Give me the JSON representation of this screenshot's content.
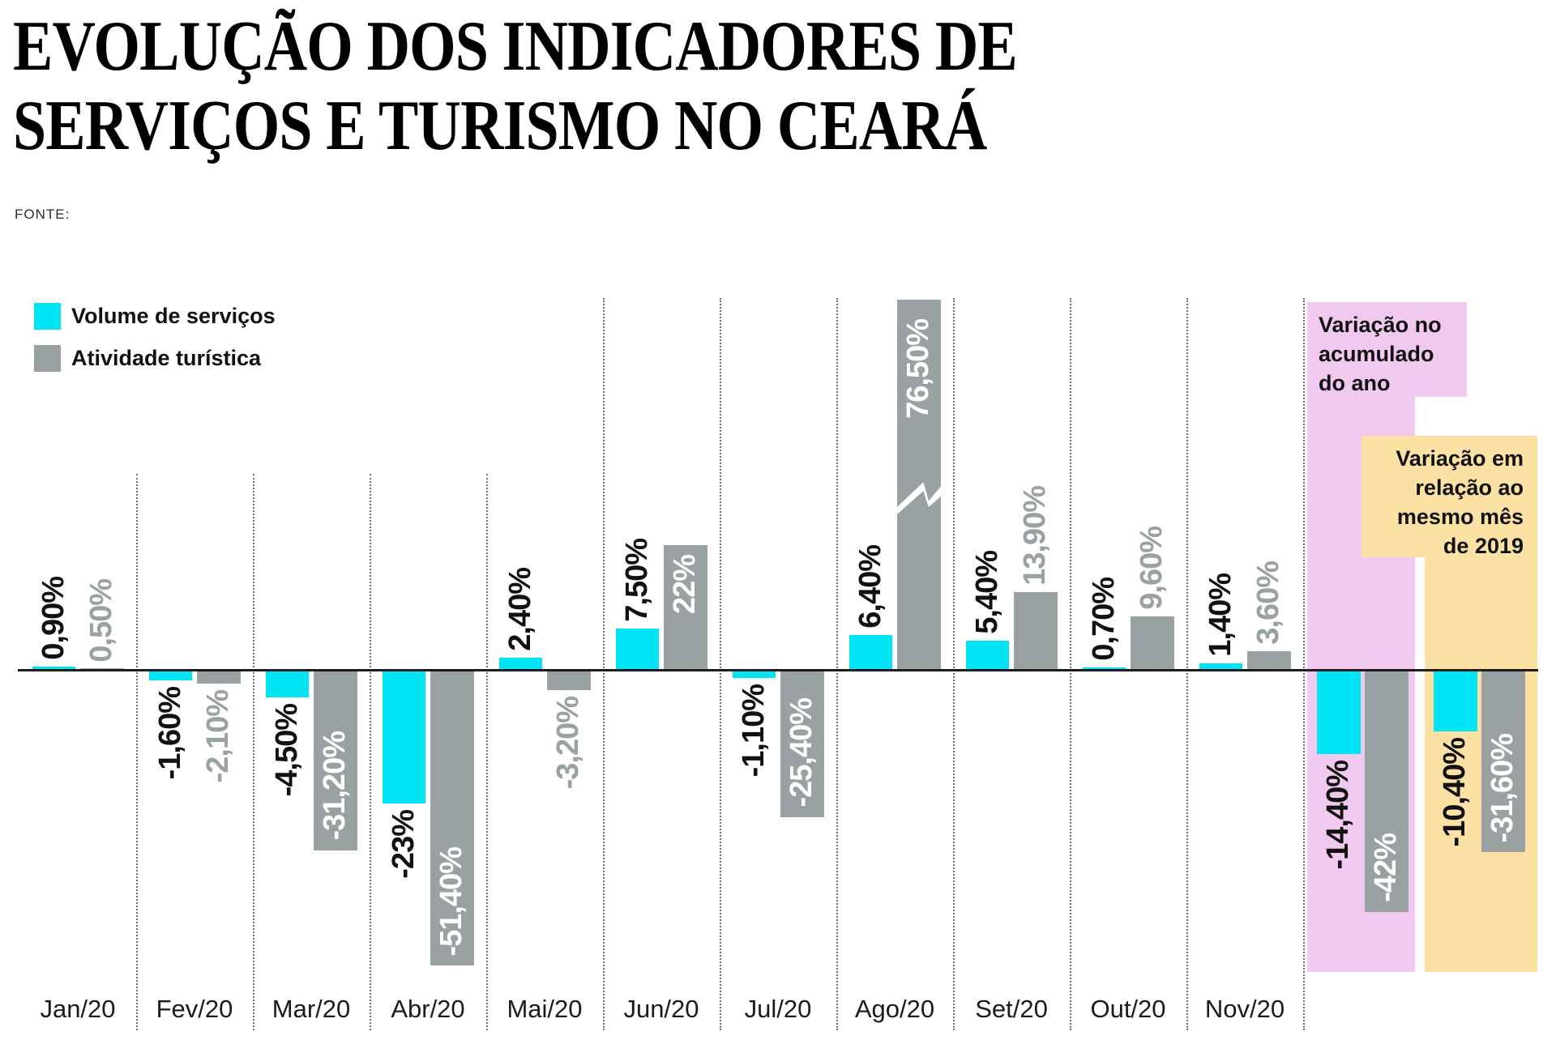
{
  "header": {
    "title_line1": "EVOLUÇÃO DOS INDICADORES DE",
    "title_line2": "SERVIÇOS E TURISMO NO CEARÁ",
    "source_label": "FONTE:"
  },
  "colors": {
    "services_cyan": "#00E5F3",
    "tourism_gray": "#99A1A2",
    "accum_panel_pink": "#F2C9EE",
    "yoy_panel_yellow": "#FBE2A4",
    "label_black": "#111111",
    "label_white": "#FFFFFF",
    "baseline_black": "#1C1C1C"
  },
  "legend": {
    "items": [
      {
        "label": "Volume de serviços"
      },
      {
        "label": "Atividade turística"
      }
    ]
  },
  "chart_data": {
    "type": "bar",
    "unit": "%",
    "categories": [
      "Jan/20",
      "Fev/20",
      "Mar/20",
      "Abr/20",
      "Mai/20",
      "Jun/20",
      "Jul/20",
      "Ago/20",
      "Set/20",
      "Out/20",
      "Nov/20"
    ],
    "series": [
      {
        "name": "Volume de serviços",
        "values": [
          0.9,
          -1.6,
          -4.5,
          -23,
          2.4,
          7.5,
          -1.1,
          6.4,
          5.4,
          0.7,
          1.4
        ]
      },
      {
        "name": "Atividade turística",
        "values": [
          0.5,
          -2.1,
          -31.2,
          -51.4,
          -3.2,
          22,
          -25.4,
          76.5,
          13.9,
          9.6,
          3.6
        ]
      }
    ],
    "value_labels": [
      [
        "0,90%",
        "0,50%"
      ],
      [
        "-1,60%",
        "-2,10%"
      ],
      [
        "-4,50%",
        "-31,20%"
      ],
      [
        "-23%",
        "-51,40%"
      ],
      [
        "2,40%",
        "-3,20%"
      ],
      [
        "7,50%",
        "22%"
      ],
      [
        "-1,10%",
        "-25,40%"
      ],
      [
        "6,40%",
        "76,50%"
      ],
      [
        "5,40%",
        "13,90%"
      ],
      [
        "0,70%",
        "9,60%"
      ],
      [
        "1,40%",
        "3,60%"
      ]
    ],
    "tourism_label_modes": [
      "gray-out",
      "gray-out",
      "white-in",
      "white-in",
      "gray-out",
      "white-in",
      "white-in",
      "white-in",
      "gray-out",
      "gray-out",
      "gray-out"
    ],
    "axis_break": {
      "category": "Ago/20",
      "series": "Atividade turística",
      "note": "bar truncated with zigzag break"
    },
    "annotations": [
      {
        "title": "Variação no\nacumulado\ndo ano",
        "values": [
          -14.4,
          -42
        ],
        "value_labels": [
          "-14,40%",
          "-42%"
        ]
      },
      {
        "title": "Variação em\nrelação ao\nmesmo mês\nde 2019",
        "values": [
          -10.4,
          -31.6
        ],
        "value_labels": [
          "-10,40%",
          "-31,60%"
        ]
      }
    ],
    "ylim_visible": [
      -55,
      80
    ],
    "grid": "vertical-dotted-separators",
    "legend_position": "top-left"
  }
}
